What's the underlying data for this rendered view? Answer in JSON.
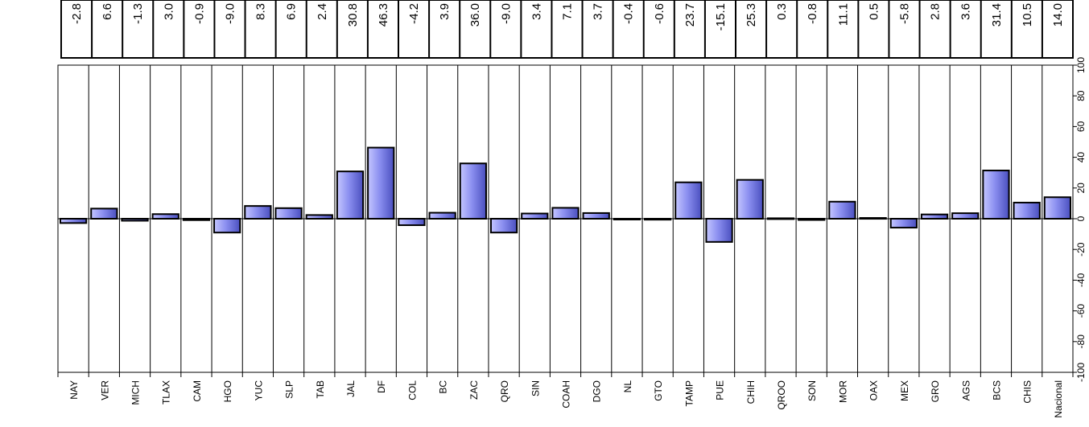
{
  "chart_data": {
    "type": "bar",
    "categories": [
      "NAY",
      "VER",
      "MICH",
      "TLAX",
      "CAM",
      "HGO",
      "YUC",
      "SLP",
      "TAB",
      "JAL",
      "DF",
      "COL",
      "BC",
      "ZAC",
      "QRO",
      "SIN",
      "COAH",
      "DGO",
      "NL",
      "GTO",
      "TAMP",
      "PUE",
      "CHIH",
      "QROO",
      "SON",
      "MOR",
      "OAX",
      "MEX",
      "GRO",
      "AGS",
      "BCS",
      "CHIS",
      "Nacional"
    ],
    "values": [
      -2.8,
      6.6,
      -1.3,
      3.0,
      -0.9,
      -9.0,
      8.3,
      6.9,
      2.4,
      30.8,
      46.3,
      -4.2,
      3.9,
      36.0,
      -9.0,
      3.4,
      7.1,
      3.7,
      -0.4,
      -0.6,
      23.7,
      -15.1,
      25.3,
      0.3,
      -0.8,
      11.1,
      0.5,
      -5.8,
      2.8,
      3.6,
      31.4,
      10.5,
      14.0
    ],
    "value_labels": [
      "-2.8",
      "6.6",
      "-1.3",
      "3.0",
      "-0.9",
      "-9.0",
      "8.3",
      "6.9",
      "2.4",
      "30.8",
      "46.3",
      "-4.2",
      "3.9",
      "36.0",
      "-9.0",
      "3.4",
      "7.1",
      "3.7",
      "-0.4",
      "-0.6",
      "23.7",
      "-15.1",
      "25.3",
      "0.3",
      "-0.8",
      "11.1",
      "0.5",
      "-5.8",
      "2.8",
      "3.6",
      "31.4",
      "10.5",
      "14.0"
    ],
    "ylim": [
      -100,
      100
    ],
    "yticks": [
      -100,
      -80,
      -60,
      -40,
      -20,
      0,
      20,
      40,
      60,
      80,
      100
    ],
    "ytick_labels": [
      "-100",
      "-80",
      "-60",
      "-40",
      "-20",
      "0",
      "20",
      "40",
      "60",
      "80",
      "100"
    ],
    "bar_color": "#8b8ff0",
    "grid": "vertical separators",
    "title": "",
    "xlabel": "",
    "ylabel": ""
  }
}
